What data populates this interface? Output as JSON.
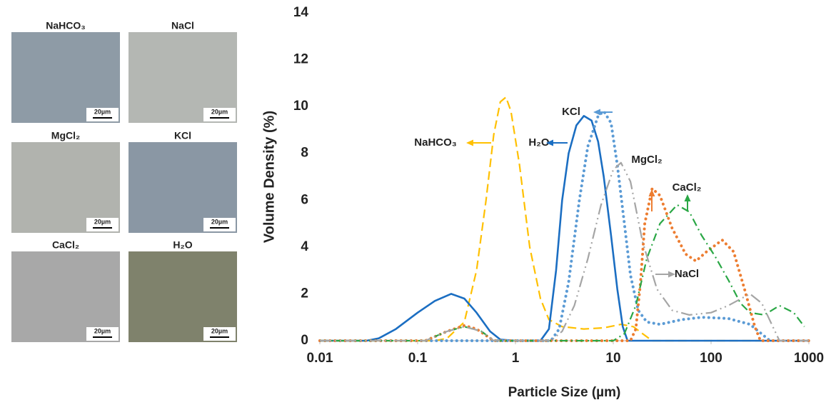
{
  "images": {
    "labels": [
      "NaHCO₃",
      "NaCl",
      "MgCl₂",
      "KCl",
      "CaCl₂",
      "H₂O"
    ],
    "scale_bar": "20µm"
  },
  "chart_data": {
    "type": "line",
    "xlabel": "Particle Size (µm)",
    "ylabel": "Volume Density (%)",
    "xscale": "log",
    "xlim": [
      0.01,
      1000
    ],
    "xticks": [
      0.01,
      0.1,
      1,
      10,
      100,
      1000
    ],
    "ylim": [
      0,
      14
    ],
    "yticks": [
      0,
      2,
      4,
      6,
      8,
      10,
      12,
      14
    ],
    "grid": false,
    "series": [
      {
        "name": "NaHCO₃",
        "color": "#ffc000",
        "dash": "dashed",
        "x": [
          0.01,
          0.15,
          0.2,
          0.3,
          0.4,
          0.5,
          0.6,
          0.7,
          0.8,
          0.9,
          1.1,
          1.4,
          1.8,
          2.2,
          3,
          5,
          8,
          12,
          16,
          20,
          25,
          1000
        ],
        "values": [
          0,
          0,
          0.1,
          0.8,
          3,
          6,
          8.8,
          10.2,
          10.4,
          9.8,
          7.5,
          4,
          1.8,
          0.9,
          0.6,
          0.5,
          0.55,
          0.7,
          0.6,
          0.3,
          0,
          0
        ]
      },
      {
        "name": "H₂O",
        "color": "#1b6ec2",
        "dash": "solid",
        "x": [
          0.01,
          0.03,
          0.04,
          0.06,
          0.1,
          0.15,
          0.22,
          0.3,
          0.4,
          0.55,
          0.7,
          1,
          1.8,
          2.2,
          2.6,
          3,
          3.5,
          4.2,
          5,
          6,
          7,
          8,
          9.5,
          11,
          12.5,
          14,
          1000
        ],
        "values": [
          0,
          0,
          0.1,
          0.5,
          1.2,
          1.7,
          2.0,
          1.8,
          1.2,
          0.4,
          0.05,
          0,
          0,
          0.5,
          3,
          6,
          8,
          9.2,
          9.6,
          9.4,
          8.5,
          7,
          4.5,
          2.2,
          0.6,
          0,
          0
        ]
      },
      {
        "name": "KCl",
        "color": "#5b9bd5",
        "dash": "dotted",
        "x": [
          0.01,
          2.3,
          2.8,
          3.5,
          4.5,
          5.5,
          7,
          8,
          9.5,
          11,
          13,
          15,
          18,
          22,
          30,
          50,
          80,
          150,
          250,
          350,
          400,
          1000
        ],
        "values": [
          0,
          0,
          0.5,
          2.5,
          6,
          8.3,
          9.6,
          9.8,
          9.3,
          7.5,
          5,
          2.8,
          1.3,
          0.8,
          0.7,
          0.9,
          1.0,
          0.95,
          0.7,
          0.2,
          0,
          0
        ]
      },
      {
        "name": "MgCl₂",
        "color": "#ed7d31",
        "dash": "dotted",
        "x": [
          0.01,
          0.12,
          0.2,
          0.3,
          0.4,
          0.6,
          15,
          17,
          19,
          21,
          25,
          30,
          40,
          55,
          70,
          90,
          130,
          170,
          220,
          280,
          320,
          1000
        ],
        "values": [
          0,
          0,
          0.4,
          0.65,
          0.5,
          0,
          0,
          0.5,
          2.5,
          5,
          6.5,
          6.2,
          4.8,
          3.7,
          3.4,
          3.8,
          4.3,
          3.8,
          2.2,
          0.6,
          0,
          0
        ]
      },
      {
        "name": "CaCl₂",
        "color": "#2aa745",
        "dash": "dashdot",
        "x": [
          0.01,
          0.12,
          0.2,
          0.3,
          0.45,
          0.6,
          10,
          13,
          17,
          22,
          30,
          45,
          60,
          80,
          110,
          150,
          200,
          250,
          350,
          500,
          700,
          900
        ],
        "values": [
          0,
          0,
          0.4,
          0.6,
          0.4,
          0,
          0,
          0.3,
          1.5,
          3.5,
          5,
          5.8,
          5.5,
          4.5,
          3.6,
          2.6,
          1.6,
          1.2,
          1.1,
          1.5,
          1.2,
          0.6
        ]
      },
      {
        "name": "NaCl",
        "color": "#a5a5a5",
        "dash": "dashdotdot",
        "x": [
          0.01,
          0.12,
          0.2,
          0.3,
          0.45,
          0.6,
          2.3,
          3,
          4,
          5.5,
          7.5,
          10,
          12,
          15,
          20,
          28,
          40,
          60,
          100,
          150,
          250,
          330,
          500,
          1000
        ],
        "values": [
          0,
          0,
          0.4,
          0.6,
          0.4,
          0,
          0,
          0.4,
          1.5,
          3.5,
          5.8,
          7.3,
          7.6,
          6.8,
          4.2,
          2.2,
          1.3,
          1.1,
          1.2,
          1.5,
          2.0,
          1.6,
          0,
          0
        ]
      }
    ]
  }
}
